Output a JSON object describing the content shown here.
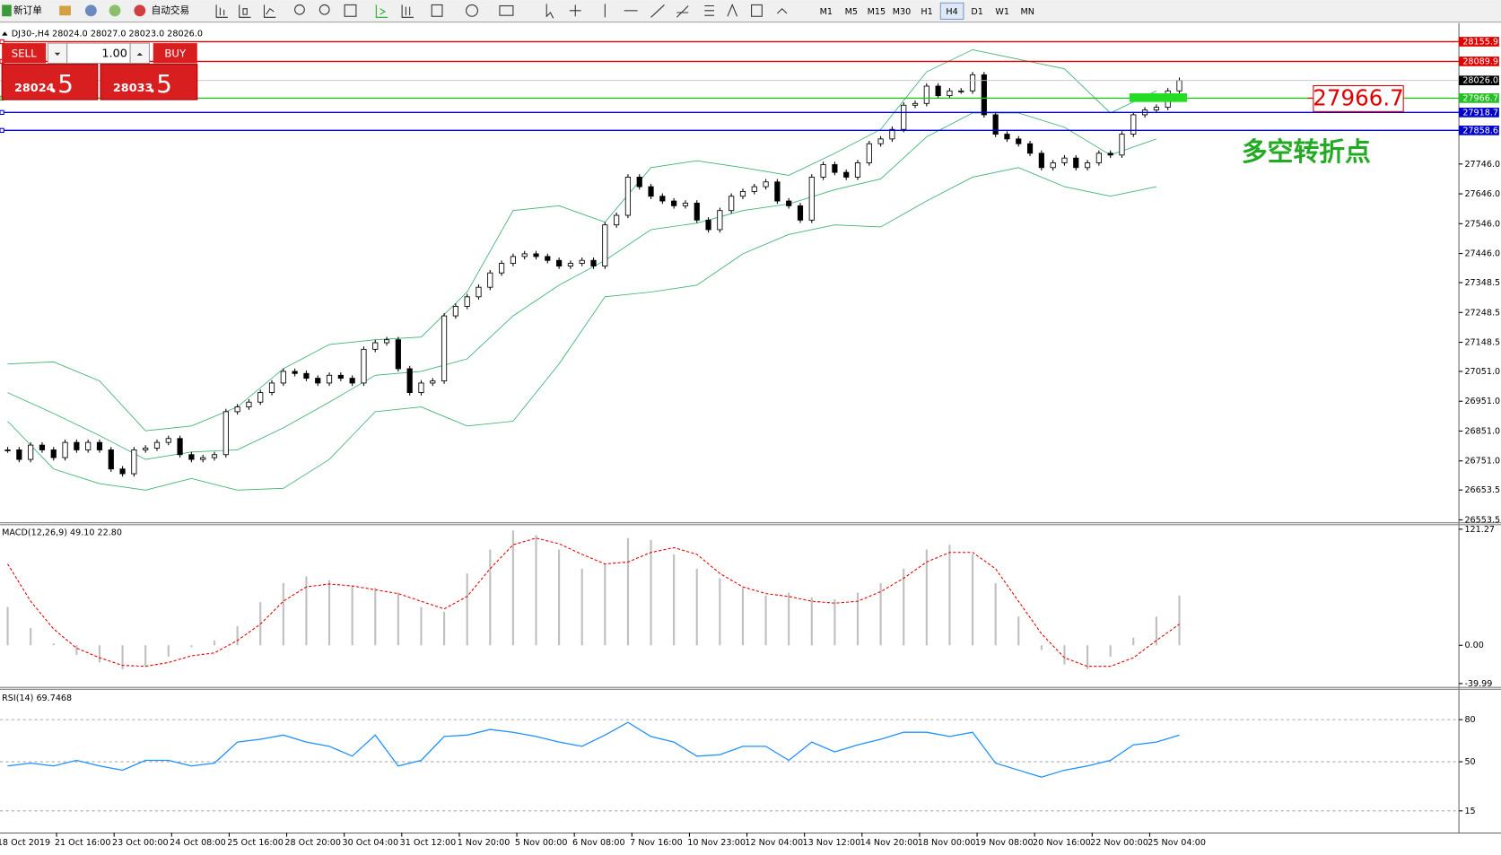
{
  "toolbar": {
    "new_order": "新订单",
    "auto_trading": "自动交易",
    "timeframes": [
      "M1",
      "M5",
      "M15",
      "M30",
      "H1",
      "H4",
      "D1",
      "W1",
      "MN"
    ],
    "active_timeframe": "H4"
  },
  "trade_panel": {
    "sell": "SELL",
    "buy": "BUY",
    "lot": "1.00",
    "sell_price": "28024",
    "sell_pips": ".5",
    "buy_price": "28033",
    "buy_pips": ".5"
  },
  "time_axis": [
    "18 Oct 2019",
    "21 Oct 16:00",
    "23 Oct 00:00",
    "24 Oct 08:00",
    "25 Oct 16:00",
    "28 Oct 20:00",
    "30 Oct 04:00",
    "31 Oct 12:00",
    "1 Nov 20:00",
    "5 Nov 00:00",
    "6 Nov 08:00",
    "7 Nov 16:00",
    "10 Nov 23:00",
    "12 Nov 04:00",
    "13 Nov 12:00",
    "14 Nov 20:00",
    "18 Nov 00:00",
    "19 Nov 08:00",
    "20 Nov 16:00",
    "22 Nov 00:00",
    "25 Nov 04:00"
  ],
  "chart_data": [
    {
      "type": "candlestick",
      "title": "DJ30-,H4  28024.0 28027.0 28023.0 28026.0",
      "values": [
        26788,
        26756,
        26804,
        26788,
        26762,
        26813,
        26788,
        26813,
        26788,
        26724,
        26708,
        26788,
        26794,
        26813,
        26826,
        26772,
        26756,
        26762,
        26772,
        26916,
        26932,
        26948,
        26980,
        27012,
        27051,
        27044,
        27028,
        27012,
        27038,
        27028,
        27012,
        27125,
        27147,
        27157,
        27060,
        26980,
        27012,
        27019,
        27237,
        27269,
        27301,
        27333,
        27381,
        27413,
        27436,
        27445,
        27436,
        27423,
        27404,
        27413,
        27423,
        27404,
        27542,
        27574,
        27702,
        27670,
        27638,
        27622,
        27606,
        27615,
        27558,
        27526,
        27590,
        27638,
        27654,
        27670,
        27686,
        27622,
        27606,
        27558,
        27702,
        27744,
        27718,
        27702,
        27750,
        27814,
        27830,
        27862,
        27943,
        27949,
        28007,
        27975,
        27991,
        27991,
        28045,
        27911,
        27846,
        27830,
        27814,
        27782,
        27734,
        27750,
        27766,
        27734,
        27750,
        27782,
        27776,
        27846,
        27911,
        27927,
        27936,
        27991,
        28026
      ],
      "bands": {
        "color": "#3cb371",
        "upper": [
          27076,
          27083,
          27019,
          26852,
          26868,
          26932,
          27060,
          27141,
          27157,
          27166,
          27317,
          27590,
          27606,
          27551,
          27734,
          27757,
          27734,
          27708,
          27782,
          27862,
          28055,
          28129,
          28097,
          28065,
          27917,
          27991
        ],
        "middle": [
          26980,
          26910,
          26836,
          26756,
          26781,
          26788,
          26862,
          26948,
          27038,
          27051,
          27093,
          27237,
          27340,
          27423,
          27526,
          27548,
          27590,
          27612,
          27660,
          27696,
          27837,
          27917,
          27917,
          27869,
          27776,
          27830
        ],
        "lower": [
          26884,
          26724,
          26675,
          26653,
          26692,
          26653,
          26659,
          26756,
          26916,
          26932,
          26868,
          26884,
          27076,
          27301,
          27317,
          27340,
          27445,
          27510,
          27542,
          27535,
          27622,
          27702,
          27734,
          27670,
          27638,
          27670
        ]
      },
      "ylim": [
        26547,
        28167
      ],
      "yticks": [
        {
          "value": 27746,
          "label": "27746.0"
        },
        {
          "value": 27646,
          "label": "27646.0"
        },
        {
          "value": 27546,
          "label": "27546.0"
        },
        {
          "value": 27446,
          "label": "27446.0"
        },
        {
          "value": 27348.5,
          "label": "27348.5"
        },
        {
          "value": 27248.5,
          "label": "27248.5"
        },
        {
          "value": 27148.5,
          "label": "27148.5"
        },
        {
          "value": 27051,
          "label": "27051.0"
        },
        {
          "value": 26951,
          "label": "26951.0"
        },
        {
          "value": 26851,
          "label": "26851.0"
        },
        {
          "value": 26751,
          "label": "26751.0"
        },
        {
          "value": 26653.5,
          "label": "26653.5"
        },
        {
          "value": 26553.5,
          "label": "26553.5"
        }
      ],
      "levels": [
        {
          "value": 28155.9,
          "color": "#e00000"
        },
        {
          "value": 28089.9,
          "color": "#e00000"
        },
        {
          "value": 27966.7,
          "color": "#22c022"
        },
        {
          "value": 27918.7,
          "color": "#0000cc"
        },
        {
          "value": 27858.6,
          "color": "#0000cc"
        }
      ],
      "current": {
        "value": 28026,
        "label": "28026.0"
      },
      "annotation": "多空转折点"
    },
    {
      "type": "macd",
      "title": "MACD(12,26,9) 49.10 22.80",
      "values": [
        40,
        18,
        2,
        -10,
        -18,
        -25,
        -22,
        -12,
        -2,
        5,
        20,
        45,
        65,
        72,
        68,
        62,
        60,
        55,
        40,
        35,
        75,
        100,
        120,
        115,
        100,
        80,
        85,
        112,
        110,
        95,
        80,
        70,
        60,
        52,
        55,
        50,
        48,
        55,
        65,
        80,
        100,
        105,
        95,
        65,
        30,
        -5,
        -20,
        -25,
        -12,
        8,
        30,
        52
      ],
      "signal": [
        85,
        46,
        17,
        -3,
        -13,
        -21,
        -22,
        -18,
        -11,
        -8,
        5,
        22,
        46,
        61,
        64,
        62,
        58,
        54,
        46,
        38,
        51,
        80,
        105,
        112,
        106,
        95,
        85,
        87,
        97,
        102,
        95,
        75,
        61,
        54,
        51,
        46,
        44,
        46,
        56,
        70,
        87,
        97,
        97,
        80,
        46,
        12,
        -13,
        -22,
        -22,
        -13,
        5,
        22
      ],
      "color": "#c0c0c0",
      "signal_color": "#e00000",
      "ylim": [
        -43,
        126
      ],
      "yticks": [
        121.27,
        {
          "value": 0,
          "label": "0.00"
        },
        -39.99
      ]
    },
    {
      "type": "line",
      "title": "RSI(14) 69.7468",
      "values": [
        47,
        49,
        47,
        51,
        47,
        44,
        51,
        51,
        47,
        49,
        64,
        66,
        69,
        64,
        61,
        54,
        69,
        47,
        51,
        68,
        69,
        73,
        71,
        68,
        64,
        61,
        69,
        78,
        68,
        64,
        54,
        55,
        61,
        61,
        51,
        64,
        57,
        62,
        66,
        71,
        71,
        68,
        71,
        49,
        44,
        39,
        44,
        47,
        51,
        62,
        64,
        69
      ],
      "color": "#1e90ff",
      "ylim": [
        0,
        101.6
      ],
      "yticks": [
        15,
        50,
        80
      ]
    }
  ]
}
